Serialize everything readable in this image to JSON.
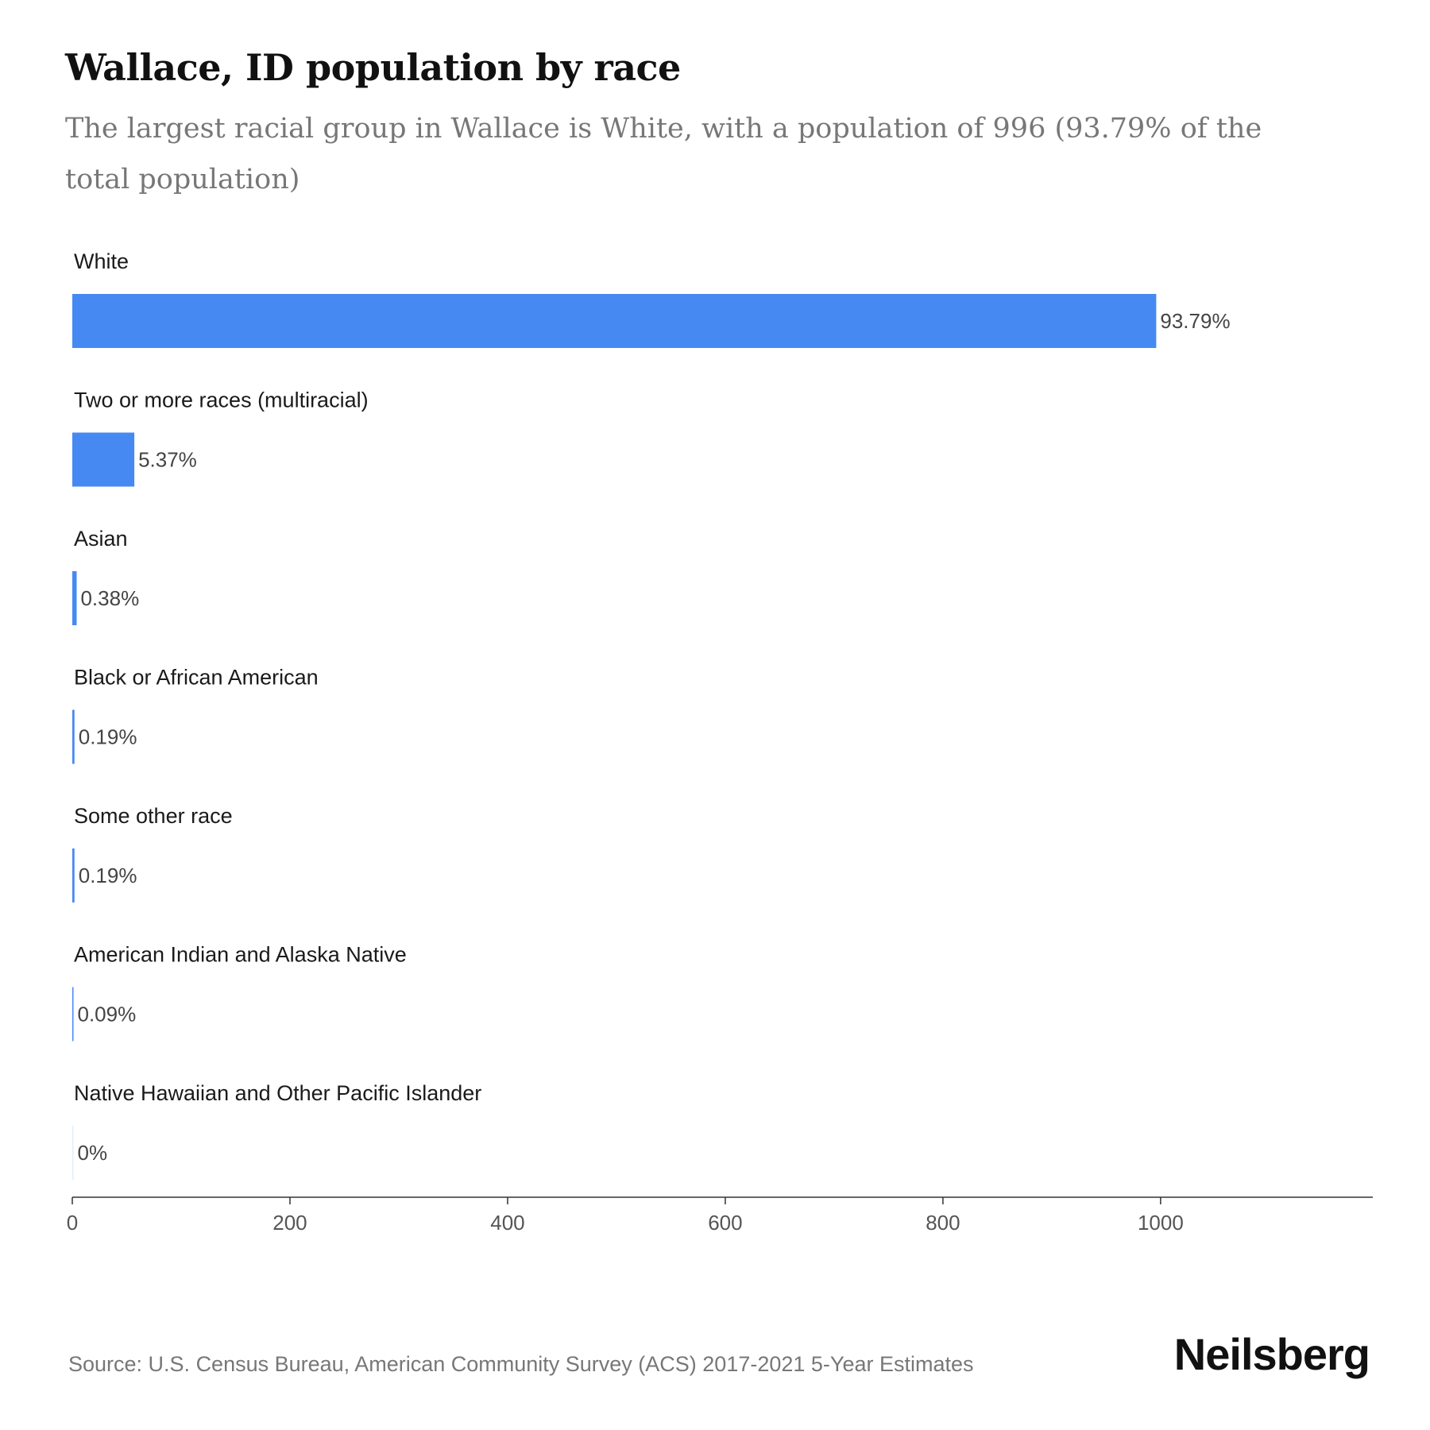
{
  "header": {
    "title": "Wallace, ID population by race",
    "subtitle": "The largest racial group in Wallace is White, with a population of 996 (93.79% of the total population)"
  },
  "footer": {
    "source": "Source: U.S. Census Bureau, American Community Survey (ACS) 2017-2021 5-Year Estimates",
    "brand": "Neilsberg"
  },
  "colors": {
    "bar": "#4689f2",
    "axis": "#333333"
  },
  "chart_data": {
    "type": "bar",
    "orientation": "horizontal",
    "title": "Wallace, ID population by race",
    "categories": [
      "White",
      "Two or more races (multiracial)",
      "Asian",
      "Black or African American",
      "Some other race",
      "American Indian and Alaska Native",
      "Native Hawaiian and Other Pacific Islander"
    ],
    "values": [
      996,
      57,
      4,
      2,
      2,
      1,
      0
    ],
    "value_labels": [
      "93.79%",
      "5.37%",
      "0.38%",
      "0.19%",
      "0.19%",
      "0.09%",
      "0%"
    ],
    "xlim": [
      0,
      1195
    ],
    "xticks": [
      0,
      200,
      400,
      600,
      800,
      1000
    ],
    "grid": false,
    "legend": "none"
  }
}
